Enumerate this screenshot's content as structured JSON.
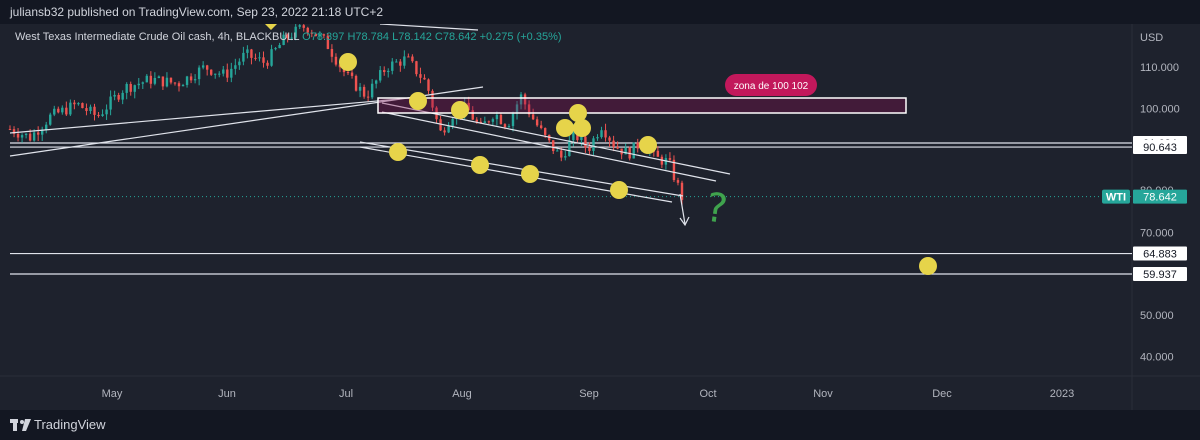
{
  "header": {
    "published_by": "juliansb32 published on TradingView.com, Sep 23, 2022 21:18 UTC+2"
  },
  "legend": {
    "symbol": "West Texas Intermediate Crude Oil cash, 4h, BLACKBULL",
    "open": "O78.397",
    "high": "H78.784",
    "low": "L78.142",
    "close": "C78.642",
    "change": "+0.275 (+0.35%)"
  },
  "currency": "USD",
  "price_axis": {
    "labels": [
      "110.000",
      "100.000",
      "70.000",
      "50.000",
      "40.000"
    ],
    "levels": [
      {
        "label": "91.624",
        "value": 91.624
      },
      {
        "label": "90.643",
        "value": 90.643
      },
      {
        "label": "64.883",
        "value": 64.883
      },
      {
        "label": "59.937",
        "value": 59.937
      }
    ],
    "current": {
      "symbol": "WTI",
      "label": "78.642",
      "value": 78.642
    },
    "hidden_label": "80.000"
  },
  "time_axis": {
    "labels": [
      "May",
      "Jun",
      "Jul",
      "Aug",
      "Sep",
      "Oct",
      "Nov",
      "Dec",
      "2023"
    ]
  },
  "annotations": {
    "zone_label": "zona de 100 102",
    "question_mark": "?"
  },
  "footer": {
    "brand": "TradingView"
  },
  "colors": {
    "background": "#1e222d",
    "up": "#26a69a",
    "down": "#ef5350",
    "marker": "#e6d44a",
    "zone": "#c2185b",
    "current_price": "#26a69a",
    "question": "#3fa34d"
  },
  "chart_data": {
    "type": "candlestick",
    "series_name": "WTI",
    "price_range": [
      35,
      120
    ],
    "close_path": [
      [
        0,
        95
      ],
      [
        0.03,
        93
      ],
      [
        0.06,
        98
      ],
      [
        0.1,
        101
      ],
      [
        0.13,
        98
      ],
      [
        0.17,
        105
      ],
      [
        0.21,
        107
      ],
      [
        0.25,
        106
      ],
      [
        0.29,
        110
      ],
      [
        0.32,
        108
      ],
      [
        0.35,
        113
      ],
      [
        0.38,
        111
      ],
      [
        0.41,
        117
      ],
      [
        0.44,
        120
      ],
      [
        0.47,
        116
      ],
      [
        0.5,
        108
      ],
      [
        0.53,
        103
      ],
      [
        0.56,
        110
      ],
      [
        0.59,
        112
      ],
      [
        0.62,
        106
      ],
      [
        0.64,
        94
      ],
      [
        0.66,
        99
      ],
      [
        0.68,
        100
      ],
      [
        0.7,
        95
      ],
      [
        0.72,
        99
      ],
      [
        0.74,
        96
      ],
      [
        0.76,
        103
      ],
      [
        0.78,
        97
      ],
      [
        0.8,
        92
      ],
      [
        0.82,
        88
      ],
      [
        0.84,
        94
      ],
      [
        0.86,
        90
      ],
      [
        0.88,
        96
      ],
      [
        0.9,
        91
      ],
      [
        0.92,
        89
      ],
      [
        0.94,
        92
      ],
      [
        0.96,
        88
      ],
      [
        0.98,
        87
      ],
      [
        1.0,
        78.6
      ]
    ]
  }
}
